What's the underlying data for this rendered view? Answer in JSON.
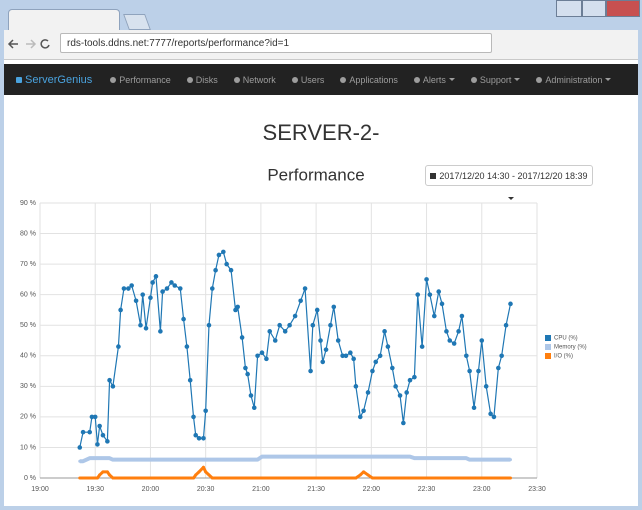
{
  "browser": {
    "url": "rds-tools.ddns.net:7777/reports/performance?id=1"
  },
  "navbar": {
    "brand": "ServerGenius",
    "items": [
      "Performance",
      "Disks",
      "Network",
      "Users",
      "Applications",
      "Alerts",
      "Support",
      "Administration"
    ]
  },
  "page": {
    "heading": "SERVER-2-",
    "date_range": "2017/12/20 14:30 - 2017/12/20 18:39"
  },
  "chart_data": {
    "type": "line",
    "title": "Performance",
    "x": [
      19.36,
      19.39,
      19.45,
      19.47,
      19.5,
      19.52,
      19.54,
      19.57,
      19.61,
      19.63,
      19.66,
      19.71,
      19.73,
      19.76,
      19.8,
      19.83,
      19.87,
      19.91,
      19.93,
      19.96,
      20.0,
      20.02,
      20.05,
      20.09,
      20.11,
      20.15,
      20.19,
      20.22,
      20.27,
      20.3,
      20.33,
      20.36,
      20.39,
      20.41,
      20.44,
      20.48,
      20.5,
      20.53,
      20.56,
      20.59,
      20.62,
      20.66,
      20.69,
      20.73,
      20.77,
      20.79,
      20.83,
      20.86,
      20.88,
      20.91,
      20.94,
      20.97,
      21.01,
      21.05,
      21.08,
      21.13,
      21.17,
      21.22,
      21.26,
      21.31,
      21.36,
      21.4,
      21.45,
      21.47,
      21.51,
      21.54,
      21.56,
      21.59,
      21.63,
      21.66,
      21.7,
      21.74,
      21.77,
      21.81,
      21.84,
      21.86,
      21.9,
      21.93,
      21.97,
      22.01,
      22.04,
      22.08,
      22.12,
      22.15,
      22.19,
      22.22,
      22.26,
      22.29,
      22.32,
      22.35,
      22.39,
      22.42,
      22.46,
      22.5,
      22.53,
      22.57,
      22.61,
      22.64,
      22.68,
      22.71,
      22.75,
      22.79,
      22.82,
      22.86,
      22.89,
      22.93,
      22.97,
      23.0,
      23.04,
      23.08,
      23.11,
      23.15,
      23.18,
      23.22,
      23.26
    ],
    "series": [
      {
        "name": "CPU (%)",
        "color": "#1f77b4",
        "values": [
          10,
          15,
          15,
          20,
          20,
          11,
          17,
          14,
          12,
          32,
          30,
          43,
          55,
          62,
          62,
          63,
          58,
          50,
          60,
          49,
          59,
          64,
          66,
          48,
          61,
          62,
          64,
          63,
          62,
          52,
          43,
          32,
          20,
          14,
          13,
          13,
          22,
          50,
          62,
          68,
          73,
          74,
          70,
          68,
          55,
          56,
          46,
          36,
          34,
          27,
          23,
          40,
          41,
          39,
          48,
          45,
          50,
          48,
          50,
          53,
          58,
          62,
          35,
          50,
          55,
          45,
          38,
          42,
          50,
          56,
          45,
          40,
          40,
          41,
          39,
          30,
          20,
          22,
          28,
          35,
          38,
          40,
          48,
          43,
          36,
          30,
          27,
          18,
          28,
          32,
          33,
          60,
          43,
          65,
          60,
          53,
          61,
          57,
          48,
          45,
          44,
          48,
          53,
          40,
          35,
          23,
          35,
          45,
          30,
          21,
          20,
          36,
          40,
          50,
          57
        ]
      },
      {
        "name": "Memory (%)",
        "color": "#aec7e8",
        "values": [
          5.5,
          5.5,
          6.5,
          6.5,
          6.5,
          6.5,
          6.5,
          6.5,
          6.5,
          6.5,
          6,
          6,
          6,
          6,
          6,
          6,
          6,
          6,
          6,
          6,
          6,
          6,
          6,
          6,
          6,
          6,
          6,
          6,
          6,
          6,
          6,
          6,
          6,
          6,
          6,
          6,
          6,
          6,
          6,
          6,
          6,
          6,
          6,
          6,
          6,
          6,
          6,
          6,
          6,
          6,
          6,
          6,
          7,
          7,
          7,
          7,
          7,
          7,
          7,
          7,
          7,
          7,
          7,
          7,
          7,
          7,
          7,
          7,
          7,
          7,
          7,
          7,
          7,
          7,
          7,
          7,
          7,
          7,
          7,
          7,
          7,
          7,
          7,
          7,
          7,
          7,
          7,
          7,
          7,
          7,
          6.5,
          6.5,
          6.5,
          6.5,
          6.5,
          6.5,
          6.5,
          6.5,
          6.5,
          6.5,
          6.5,
          6.5,
          6.5,
          6.5,
          6,
          6,
          6,
          6,
          6,
          6,
          6,
          6,
          6,
          6,
          6
        ]
      },
      {
        "name": "I/O (%)",
        "color": "#ff7f0e",
        "values": [
          0,
          0,
          0,
          0,
          0,
          0,
          1,
          2,
          2,
          1,
          0,
          0,
          0,
          0,
          0,
          0,
          0,
          0,
          0,
          0,
          0,
          0,
          0,
          0,
          0,
          0,
          0,
          0,
          0,
          0,
          0,
          0,
          0,
          1,
          2,
          3.5,
          2,
          1,
          0,
          0,
          0,
          0,
          0,
          0,
          0,
          0,
          0,
          0,
          0,
          0,
          0,
          0,
          0,
          0,
          0,
          0,
          0,
          0,
          0,
          0,
          0,
          0,
          0,
          0,
          0,
          0,
          0,
          0,
          0,
          0,
          0,
          0,
          0,
          0,
          0,
          0,
          1,
          2,
          1,
          0,
          0,
          0,
          0,
          0,
          0,
          0,
          0,
          0,
          0,
          0,
          0,
          0,
          0,
          0,
          0,
          0,
          0,
          0,
          0,
          0,
          0,
          0,
          0,
          0,
          0,
          0,
          0,
          0,
          0,
          0,
          0,
          0,
          0,
          0,
          0
        ]
      }
    ],
    "xlim": [
      19,
      23.5
    ],
    "xticks": [
      {
        "value": 19,
        "label": "19:00"
      },
      {
        "value": 19.5,
        "label": "19:30"
      },
      {
        "value": 20,
        "label": "20:00"
      },
      {
        "value": 20.5,
        "label": "20:30"
      },
      {
        "value": 21,
        "label": "21:00"
      },
      {
        "value": 21.5,
        "label": "21:30"
      },
      {
        "value": 22,
        "label": "22:00"
      },
      {
        "value": 22.5,
        "label": "22:30"
      },
      {
        "value": 23,
        "label": "23:00"
      },
      {
        "value": 23.5,
        "label": "23:30"
      }
    ],
    "ylim": [
      0,
      90
    ],
    "yticks": [
      {
        "value": 0,
        "label": "0 %"
      },
      {
        "value": 10,
        "label": "10 %"
      },
      {
        "value": 20,
        "label": "20 %"
      },
      {
        "value": 30,
        "label": "30 %"
      },
      {
        "value": 40,
        "label": "40 %"
      },
      {
        "value": 50,
        "label": "50 %"
      },
      {
        "value": 60,
        "label": "60 %"
      },
      {
        "value": 70,
        "label": "70 %"
      },
      {
        "value": 80,
        "label": "80 %"
      },
      {
        "value": 90,
        "label": "90 %"
      }
    ],
    "grid": true,
    "legend": "right"
  }
}
